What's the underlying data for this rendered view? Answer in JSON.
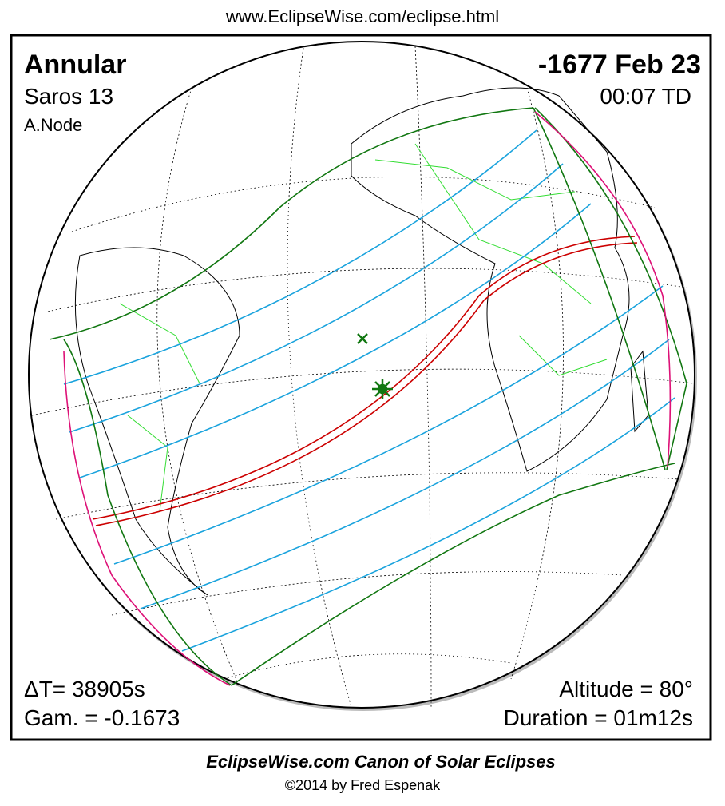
{
  "header": {
    "url": "www.EclipseWise.com/eclipse.html"
  },
  "eclipse": {
    "type": "Annular",
    "saros": "Saros  13",
    "node": "A.Node",
    "date": "-1677 Feb 23",
    "time": "00:07 TD",
    "delta_t": "ΔT=  38905s",
    "gamma": "Gam. = -0.1673",
    "altitude": "Altitude = 80°",
    "duration": "Duration = 01m12s"
  },
  "footer": {
    "title": "EclipseWise.com Canon of Solar Eclipses",
    "copyright": "©2014 by Fred Espenak"
  }
}
